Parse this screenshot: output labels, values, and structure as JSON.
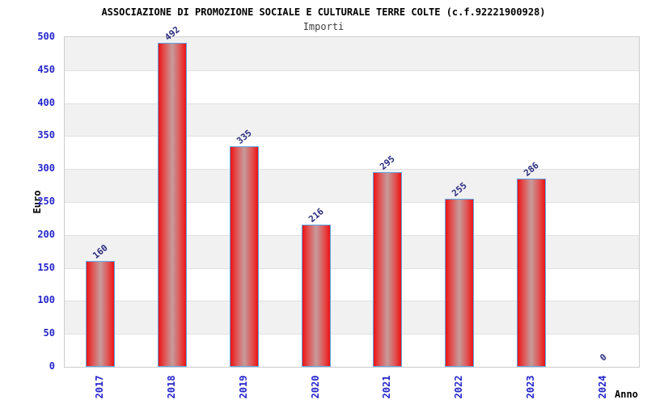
{
  "chart_data": {
    "type": "bar",
    "title": "ASSOCIAZIONE DI PROMOZIONE SOCIALE E CULTURALE TERRE COLTE (c.f.92221900928)",
    "subtitle": "Importi",
    "categories": [
      "2017",
      "2018",
      "2019",
      "2020",
      "2021",
      "2022",
      "2023",
      "2024"
    ],
    "values": [
      160,
      492,
      335,
      216,
      295,
      255,
      286,
      0
    ],
    "xlabel": "Anno",
    "ylabel": "Euro",
    "ylim": [
      0,
      500
    ],
    "ytick_step": 50,
    "grid": "alternating-horizontal-bands",
    "legend": "none",
    "colors": {
      "bar_edge": "#ee1212",
      "bar_mid": "#e05454",
      "bar_highlight": "#c79b9b",
      "bar_border": "#5aa7e8",
      "axis_tick_blue": "#2424cc",
      "value_label_navy": "#2b2b80",
      "band_gray": "#f1f1f1",
      "gridline_gray": "#e0e0e0",
      "plot_border_gray": "#cccccc"
    }
  }
}
